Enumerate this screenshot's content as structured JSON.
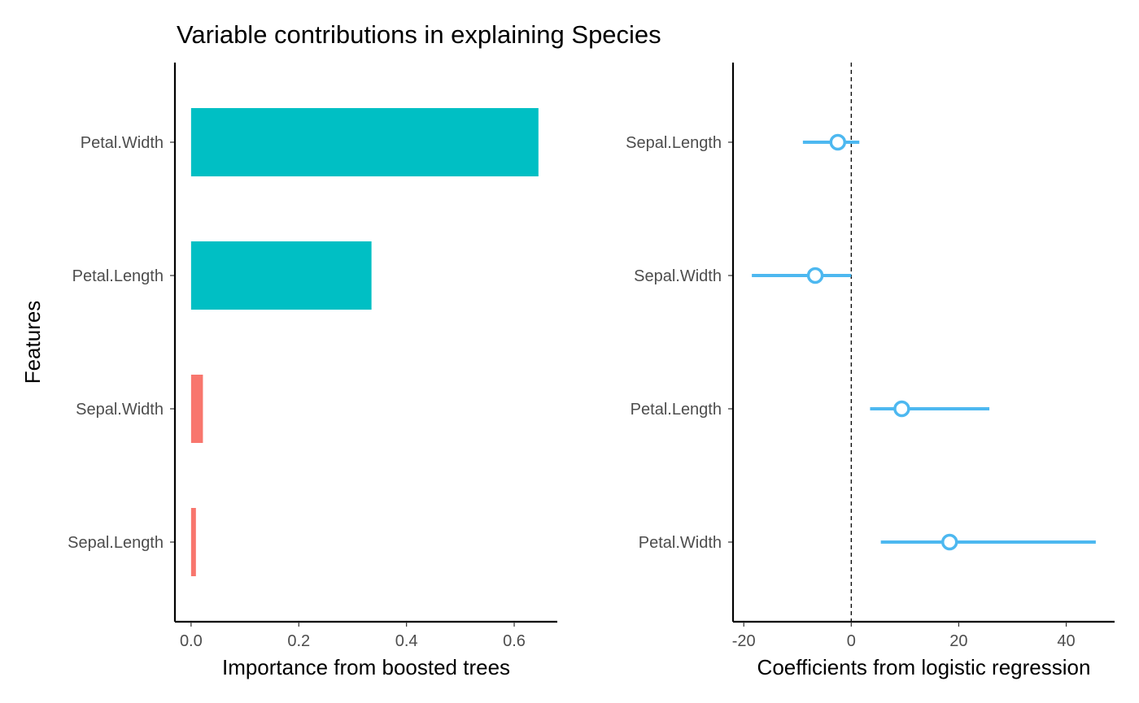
{
  "title": "Variable contributions in explaining Species",
  "ylabel": "Features",
  "chart_data": [
    {
      "type": "bar",
      "orientation": "horizontal",
      "categories": [
        "Petal.Width",
        "Petal.Length",
        "Sepal.Width",
        "Sepal.Length"
      ],
      "values": [
        0.645,
        0.335,
        0.022,
        0.009
      ],
      "colors": [
        "#00BFC4",
        "#00BFC4",
        "#F8766D",
        "#F8766D"
      ],
      "xlabel": "Importance from boosted trees",
      "xlim": [
        -0.03,
        0.68
      ],
      "xticks": [
        0.0,
        0.2,
        0.4,
        0.6
      ],
      "xtick_labels": [
        "0.0",
        "0.2",
        "0.4",
        "0.6"
      ],
      "grid": false
    },
    {
      "type": "scatter",
      "subtype": "coefficient-with-interval",
      "categories": [
        "Sepal.Length",
        "Sepal.Width",
        "Petal.Length",
        "Petal.Width"
      ],
      "estimates": [
        -2.5,
        -6.7,
        9.4,
        18.3
      ],
      "lower": [
        -9.0,
        -18.5,
        3.5,
        5.5
      ],
      "upper": [
        1.5,
        0.0,
        25.7,
        45.5
      ],
      "color": "#4DB8F0",
      "reference_line": 0,
      "xlabel": "Coefficients from logistic regression",
      "xlim": [
        -22,
        49
      ],
      "xticks": [
        -20,
        0,
        20,
        40
      ],
      "xtick_labels": [
        "-20",
        "0",
        "20",
        "40"
      ],
      "grid": false
    }
  ]
}
